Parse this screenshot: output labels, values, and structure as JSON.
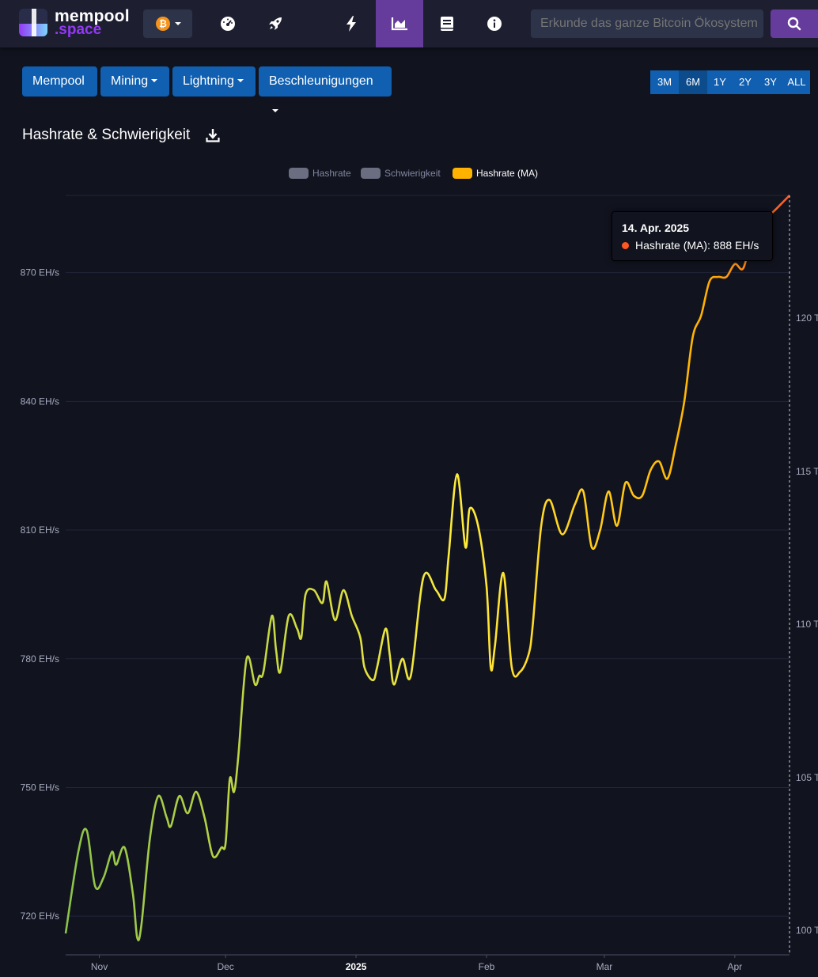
{
  "header": {
    "logo_line1": "mempool",
    "logo_line2": ".space",
    "network_symbol": "₿",
    "nav_icons": [
      "dashboard-gauge-icon",
      "rocket-icon",
      "lightning-icon",
      "graphs-icon",
      "docs-book-icon",
      "info-icon"
    ],
    "active_nav": "graphs-icon",
    "search_placeholder": "Erkunde das ganze Bitcoin Ökosystem"
  },
  "menu": {
    "items": [
      {
        "label": "Mempool",
        "dropdown": false
      },
      {
        "label": "Mining",
        "dropdown": true
      },
      {
        "label": "Lightning",
        "dropdown": true
      },
      {
        "label": "Beschleunigungen",
        "dropdown": true
      }
    ]
  },
  "time_ranges": {
    "options": [
      "3M",
      "6M",
      "1Y",
      "2Y",
      "3Y",
      "ALL"
    ],
    "selected": "6M"
  },
  "colors": {
    "background": "#11131f",
    "topbar": "#1d1f31",
    "nav_active": "#653b9c",
    "button_blue": "#105fb0",
    "button_blue_active": "#0c4b8c",
    "legend_off": "#6b6e80",
    "hashrate_ma": "#ffb300",
    "line_green": "#8bc34a",
    "line_yellow": "#ffeb3b",
    "line_orange": "#ff5722"
  },
  "chart_data": {
    "type": "line",
    "title": "Hashrate & Schwierigkeit",
    "legend": [
      {
        "name": "Hashrate",
        "enabled": false
      },
      {
        "name": "Schwierigkeit",
        "enabled": false
      },
      {
        "name": "Hashrate (MA)",
        "enabled": true
      }
    ],
    "legend_position": "top-center",
    "x_ticks": [
      "Nov",
      "Dec",
      "2025",
      "Feb",
      "Mar",
      "Apr"
    ],
    "y_left": {
      "ticks": [
        "720 EH/s",
        "750 EH/s",
        "780 EH/s",
        "810 EH/s",
        "840 EH/s",
        "870 EH/s"
      ],
      "range": [
        711,
        888
      ]
    },
    "y_right": {
      "ticks": [
        "100 T",
        "105 T",
        "110 T",
        "115 T",
        "120 T"
      ]
    },
    "grid": true,
    "series": [
      {
        "name": "Hashrate (MA)",
        "unit": "EH/s",
        "x": [
          "2024-10-24",
          "2024-10-27",
          "2024-10-29",
          "2024-10-31",
          "2024-11-02",
          "2024-11-04",
          "2024-11-05",
          "2024-11-07",
          "2024-11-09",
          "2024-11-10",
          "2024-11-11",
          "2024-11-13",
          "2024-11-15",
          "2024-11-17",
          "2024-11-18",
          "2024-11-20",
          "2024-11-22",
          "2024-11-24",
          "2024-11-26",
          "2024-11-28",
          "2024-11-30",
          "2024-12-01",
          "2024-12-02",
          "2024-12-03",
          "2024-12-04",
          "2024-12-06",
          "2024-12-08",
          "2024-12-09",
          "2024-12-10",
          "2024-12-12",
          "2024-12-13",
          "2024-12-14",
          "2024-12-16",
          "2024-12-18",
          "2024-12-19",
          "2024-12-20",
          "2024-12-22",
          "2024-12-24",
          "2024-12-25",
          "2024-12-27",
          "2024-12-29",
          "2024-12-31",
          "2025-01-02",
          "2025-01-03",
          "2025-01-05",
          "2025-01-06",
          "2025-01-08",
          "2025-01-09",
          "2025-01-10",
          "2025-01-12",
          "2025-01-14",
          "2025-01-17",
          "2025-01-20",
          "2025-01-22",
          "2025-01-23",
          "2025-01-25",
          "2025-01-27",
          "2025-01-28",
          "2025-01-30",
          "2025-02-01",
          "2025-02-02",
          "2025-02-03",
          "2025-02-05",
          "2025-02-07",
          "2025-02-09",
          "2025-02-11",
          "2025-02-12",
          "2025-02-14",
          "2025-02-16",
          "2025-02-19",
          "2025-02-22",
          "2025-02-24",
          "2025-02-26",
          "2025-02-28",
          "2025-03-02",
          "2025-03-04",
          "2025-03-06",
          "2025-03-08",
          "2025-03-10",
          "2025-03-12",
          "2025-03-14",
          "2025-03-16",
          "2025-03-18",
          "2025-03-20",
          "2025-03-22",
          "2025-03-24",
          "2025-03-26",
          "2025-03-28",
          "2025-03-30",
          "2025-04-01",
          "2025-04-03",
          "2025-04-05",
          "2025-04-07",
          "2025-04-09",
          "2025-04-11",
          "2025-04-13",
          "2025-04-14"
        ],
        "values": [
          716,
          735,
          740,
          727,
          729,
          735,
          732,
          736,
          725,
          715,
          718,
          738,
          748,
          743,
          741,
          748,
          744,
          749,
          743,
          734,
          736,
          737,
          752,
          749,
          757,
          780,
          774,
          776,
          777,
          790,
          782,
          777,
          790,
          787,
          785,
          795,
          796,
          793,
          798,
          789,
          796,
          790,
          785,
          778,
          775,
          778,
          787,
          781,
          774,
          780,
          776,
          799,
          796,
          794,
          804,
          823,
          806,
          815,
          811,
          797,
          778,
          783,
          800,
          778,
          777,
          781,
          788,
          811,
          817,
          809,
          816,
          819,
          806,
          810,
          819,
          811,
          821,
          818,
          818,
          824,
          826,
          822,
          830,
          840,
          855,
          860,
          868,
          869,
          869,
          872,
          871,
          878,
          880,
          883,
          885,
          887,
          888
        ]
      }
    ]
  },
  "tooltip": {
    "date": "14. Apr. 2025",
    "series_label": "Hashrate (MA): 888 EH/s"
  }
}
